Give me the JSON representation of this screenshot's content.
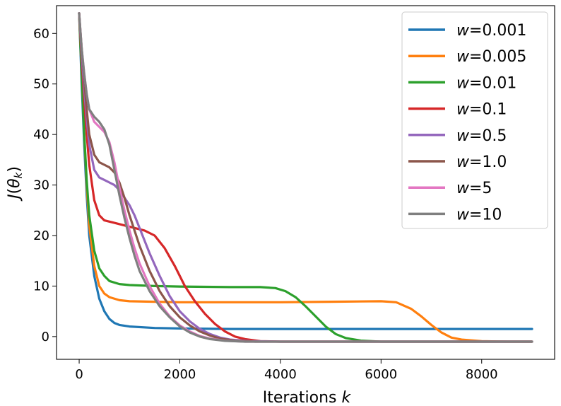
{
  "chart_data": {
    "type": "line",
    "title": "",
    "xlabel": "Iterations",
    "xlabel_var": "k",
    "ylabel": "J(θ",
    "ylabel_sub": "k",
    "ylabel_close": ")",
    "xlim": [
      -450,
      9450
    ],
    "ylim": [
      -4.5,
      65.5
    ],
    "xticks": [
      0,
      2000,
      4000,
      6000,
      8000
    ],
    "xtick_labels": [
      "0",
      "2000",
      "4000",
      "6000",
      "8000"
    ],
    "yticks": [
      0,
      10,
      20,
      30,
      40,
      50,
      60
    ],
    "ytick_labels": [
      "0",
      "10",
      "20",
      "30",
      "40",
      "50",
      "60"
    ],
    "grid": false,
    "legend_position": "top-right",
    "series": [
      {
        "name": "w=0.001",
        "w_var": "w",
        "w_value": "=0.001",
        "color": "#1f77b4",
        "points": [
          [
            0,
            64
          ],
          [
            50,
            50
          ],
          [
            100,
            38
          ],
          [
            150,
            28
          ],
          [
            200,
            20
          ],
          [
            300,
            12
          ],
          [
            400,
            7.5
          ],
          [
            500,
            5
          ],
          [
            600,
            3.5
          ],
          [
            700,
            2.7
          ],
          [
            800,
            2.3
          ],
          [
            1000,
            2
          ],
          [
            1500,
            1.7
          ],
          [
            2000,
            1.6
          ],
          [
            3000,
            1.5
          ],
          [
            9000,
            1.5
          ]
        ]
      },
      {
        "name": "w=0.005",
        "w_var": "w",
        "w_value": "=0.005",
        "color": "#ff7f0e",
        "points": [
          [
            0,
            64
          ],
          [
            50,
            52
          ],
          [
            100,
            40
          ],
          [
            150,
            30
          ],
          [
            200,
            22
          ],
          [
            300,
            14
          ],
          [
            400,
            10
          ],
          [
            500,
            8.5
          ],
          [
            600,
            7.8
          ],
          [
            800,
            7.2
          ],
          [
            1000,
            7
          ],
          [
            1500,
            6.9
          ],
          [
            2000,
            6.8
          ],
          [
            4000,
            6.8
          ],
          [
            5000,
            6.9
          ],
          [
            6000,
            7
          ],
          [
            6300,
            6.8
          ],
          [
            6600,
            5.5
          ],
          [
            6800,
            4
          ],
          [
            7000,
            2.3
          ],
          [
            7200,
            0.8
          ],
          [
            7400,
            -0.2
          ],
          [
            7600,
            -0.6
          ],
          [
            8000,
            -0.9
          ],
          [
            8500,
            -1
          ],
          [
            9000,
            -1
          ]
        ]
      },
      {
        "name": "w=0.01",
        "w_var": "w",
        "w_value": "=0.01",
        "color": "#2ca02c",
        "points": [
          [
            0,
            64
          ],
          [
            50,
            52
          ],
          [
            100,
            40
          ],
          [
            150,
            31
          ],
          [
            200,
            24
          ],
          [
            300,
            17
          ],
          [
            400,
            13.5
          ],
          [
            500,
            12
          ],
          [
            600,
            11
          ],
          [
            800,
            10.4
          ],
          [
            1000,
            10.2
          ],
          [
            1500,
            10
          ],
          [
            2000,
            9.9
          ],
          [
            3000,
            9.8
          ],
          [
            3600,
            9.8
          ],
          [
            3900,
            9.6
          ],
          [
            4100,
            9
          ],
          [
            4300,
            7.8
          ],
          [
            4500,
            6
          ],
          [
            4700,
            4
          ],
          [
            4900,
            2
          ],
          [
            5100,
            0.5
          ],
          [
            5300,
            -0.3
          ],
          [
            5600,
            -0.8
          ],
          [
            6000,
            -1
          ],
          [
            9000,
            -1
          ]
        ]
      },
      {
        "name": "w=0.1",
        "w_var": "w",
        "w_value": "=0.1",
        "color": "#d62728",
        "points": [
          [
            0,
            64
          ],
          [
            50,
            55
          ],
          [
            100,
            47
          ],
          [
            150,
            40
          ],
          [
            200,
            34
          ],
          [
            300,
            27
          ],
          [
            400,
            24
          ],
          [
            500,
            23
          ],
          [
            700,
            22.5
          ],
          [
            900,
            22
          ],
          [
            1100,
            21.5
          ],
          [
            1300,
            21
          ],
          [
            1500,
            20
          ],
          [
            1700,
            17.5
          ],
          [
            1900,
            14
          ],
          [
            2100,
            10
          ],
          [
            2300,
            7
          ],
          [
            2500,
            4.5
          ],
          [
            2700,
            2.5
          ],
          [
            2900,
            1
          ],
          [
            3100,
            0
          ],
          [
            3300,
            -0.5
          ],
          [
            3600,
            -0.9
          ],
          [
            4000,
            -1
          ],
          [
            9000,
            -1
          ]
        ]
      },
      {
        "name": "w=0.5",
        "w_var": "w",
        "w_value": "=0.5",
        "color": "#9467bd",
        "points": [
          [
            0,
            64
          ],
          [
            50,
            56
          ],
          [
            100,
            49
          ],
          [
            150,
            43
          ],
          [
            200,
            38
          ],
          [
            300,
            33
          ],
          [
            400,
            31.5
          ],
          [
            500,
            31
          ],
          [
            600,
            30.5
          ],
          [
            700,
            30
          ],
          [
            800,
            29
          ],
          [
            900,
            27.5
          ],
          [
            1000,
            26
          ],
          [
            1100,
            24
          ],
          [
            1200,
            21.5
          ],
          [
            1400,
            16.5
          ],
          [
            1600,
            12
          ],
          [
            1800,
            8
          ],
          [
            2000,
            5
          ],
          [
            2200,
            3
          ],
          [
            2400,
            1.5
          ],
          [
            2600,
            0.5
          ],
          [
            2800,
            -0.2
          ],
          [
            3000,
            -0.6
          ],
          [
            3400,
            -0.9
          ],
          [
            4000,
            -1
          ],
          [
            9000,
            -1
          ]
        ]
      },
      {
        "name": "w=1.0",
        "w_var": "w",
        "w_value": "=1.0",
        "color": "#8c564b",
        "points": [
          [
            0,
            64
          ],
          [
            50,
            57
          ],
          [
            100,
            51
          ],
          [
            150,
            45
          ],
          [
            200,
            40
          ],
          [
            300,
            36
          ],
          [
            400,
            34.5
          ],
          [
            500,
            34
          ],
          [
            600,
            33.5
          ],
          [
            700,
            32.5
          ],
          [
            800,
            30.5
          ],
          [
            900,
            27.5
          ],
          [
            1000,
            24
          ],
          [
            1100,
            21
          ],
          [
            1200,
            18
          ],
          [
            1400,
            13
          ],
          [
            1600,
            9
          ],
          [
            1800,
            6
          ],
          [
            2000,
            3.8
          ],
          [
            2200,
            2.2
          ],
          [
            2400,
            1
          ],
          [
            2600,
            0.2
          ],
          [
            2800,
            -0.4
          ],
          [
            3100,
            -0.8
          ],
          [
            3500,
            -1
          ],
          [
            9000,
            -1
          ]
        ]
      },
      {
        "name": "w=5",
        "w_var": "w",
        "w_value": "=5",
        "color": "#e377c2",
        "points": [
          [
            0,
            64
          ],
          [
            50,
            57
          ],
          [
            100,
            52
          ],
          [
            150,
            48
          ],
          [
            200,
            45
          ],
          [
            300,
            42.5
          ],
          [
            400,
            41.5
          ],
          [
            500,
            40.5
          ],
          [
            600,
            38.5
          ],
          [
            700,
            34.5
          ],
          [
            800,
            29.5
          ],
          [
            900,
            25
          ],
          [
            1000,
            21
          ],
          [
            1100,
            17.5
          ],
          [
            1200,
            14.5
          ],
          [
            1400,
            10
          ],
          [
            1600,
            6.5
          ],
          [
            1800,
            4
          ],
          [
            2000,
            2.2
          ],
          [
            2200,
            1
          ],
          [
            2400,
            0.1
          ],
          [
            2600,
            -0.4
          ],
          [
            2900,
            -0.8
          ],
          [
            3300,
            -1
          ],
          [
            9000,
            -1
          ]
        ]
      },
      {
        "name": "w=10",
        "w_var": "w",
        "w_value": "=10",
        "color": "#7f7f7f",
        "points": [
          [
            0,
            64
          ],
          [
            50,
            57
          ],
          [
            100,
            52
          ],
          [
            150,
            48
          ],
          [
            200,
            45
          ],
          [
            300,
            43.5
          ],
          [
            400,
            42.5
          ],
          [
            500,
            41
          ],
          [
            600,
            38
          ],
          [
            700,
            33
          ],
          [
            800,
            28
          ],
          [
            900,
            23.5
          ],
          [
            1000,
            19.5
          ],
          [
            1100,
            16
          ],
          [
            1200,
            13
          ],
          [
            1400,
            9
          ],
          [
            1600,
            6
          ],
          [
            1800,
            3.8
          ],
          [
            2000,
            2
          ],
          [
            2200,
            0.8
          ],
          [
            2400,
            0
          ],
          [
            2600,
            -0.5
          ],
          [
            2900,
            -0.85
          ],
          [
            3300,
            -1
          ],
          [
            9000,
            -1
          ]
        ]
      }
    ]
  }
}
